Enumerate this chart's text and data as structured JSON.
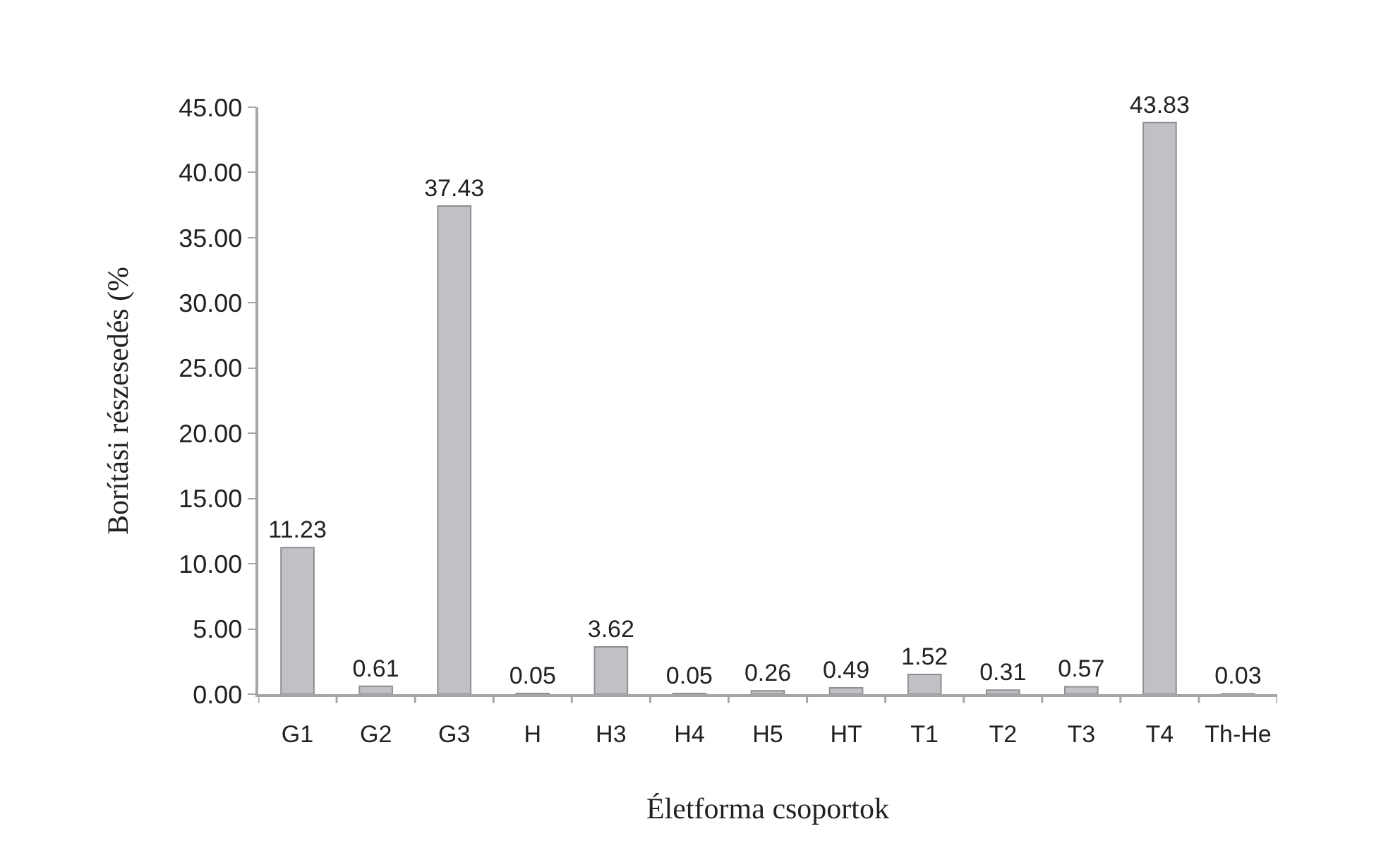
{
  "chart_data": {
    "type": "bar",
    "xlabel": "Életforma csoportok",
    "ylabel": "Borítási részesedés (%",
    "categories": [
      "G1",
      "G2",
      "G3",
      "H",
      "H3",
      "H4",
      "H5",
      "HT",
      "T1",
      "T2",
      "T3",
      "T4",
      "Th-He"
    ],
    "values": [
      11.23,
      0.61,
      37.43,
      0.05,
      3.62,
      0.05,
      0.26,
      0.49,
      1.52,
      0.31,
      0.57,
      43.83,
      0.03
    ],
    "color": "#c0c1c5",
    "ylim": [
      0,
      45
    ],
    "yticks": [
      {
        "value": 0,
        "label": "0.00"
      },
      {
        "value": 5,
        "label": "5.00"
      },
      {
        "value": 10,
        "label": "10.00"
      },
      {
        "value": 15,
        "label": "15.00"
      },
      {
        "value": 20,
        "label": "20.00"
      },
      {
        "value": 25,
        "label": "25.00"
      },
      {
        "value": 30,
        "label": "30.00"
      },
      {
        "value": 35,
        "label": "35.00"
      },
      {
        "value": 40,
        "label": "40.00"
      },
      {
        "value": 45,
        "label": "45.00"
      }
    ],
    "data_labels": true,
    "grid": false
  }
}
